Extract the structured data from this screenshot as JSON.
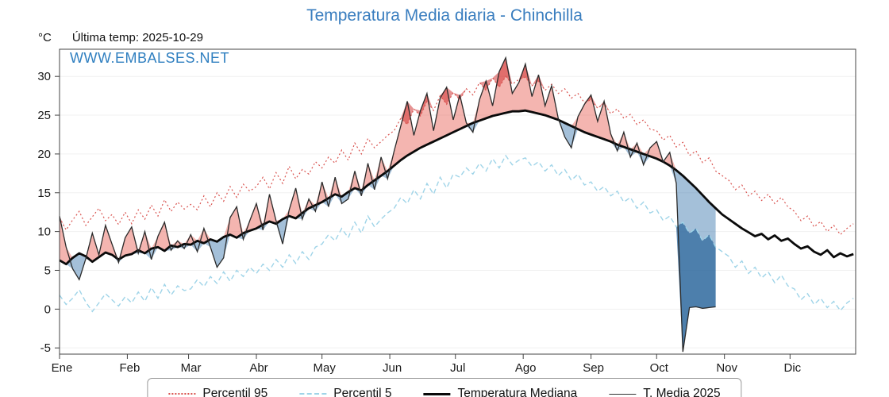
{
  "title": "Temperatura Media diaria - Chinchilla",
  "y_axis_unit": "°C",
  "last_temp_label": "Última temp: 2025-10-29",
  "watermark": "WWW.EMBALSES.NET",
  "colors": {
    "title_blue": "#3a7ebf",
    "watermark_blue": "#2f7fc0",
    "p95_line": "#d9534f",
    "p5_line": "#9fd4e8",
    "median_line": "#0a0a0a",
    "t2025_line": "#2a2a2a",
    "fill_red_light": "rgba(230,90,80,0.45)",
    "fill_red_dark": "rgba(205,40,40,0.50)",
    "fill_blue_light": "rgba(90,140,185,0.55)",
    "fill_blue_dark": "rgba(55,110,160,0.80)"
  },
  "legend": [
    {
      "label": "Percentil 95"
    },
    {
      "label": "Percentil 5"
    },
    {
      "label": "Temperatura Mediana"
    },
    {
      "label": "T. Media 2025"
    }
  ],
  "chart_data": {
    "type": "line",
    "title": "Temperatura Media diaria - Chinchilla",
    "ylabel": "°C",
    "ylim": [
      -5.8,
      33.5
    ],
    "y_ticks": [
      -5,
      0,
      5,
      10,
      15,
      20,
      25,
      30
    ],
    "month_ticks": {
      "days": [
        1,
        32,
        60,
        91,
        121,
        152,
        182,
        213,
        244,
        274,
        305,
        335
      ],
      "labels": [
        "Ene",
        "Feb",
        "Mar",
        "Abr",
        "May",
        "Jun",
        "Jul",
        "Ago",
        "Sep",
        "Oct",
        "Nov",
        "Dic"
      ]
    },
    "x_days": [
      1,
      4,
      7,
      10,
      13,
      16,
      19,
      22,
      25,
      28,
      31,
      34,
      37,
      40,
      43,
      46,
      49,
      52,
      55,
      58,
      61,
      64,
      67,
      70,
      73,
      76,
      79,
      82,
      85,
      88,
      91,
      94,
      97,
      100,
      103,
      106,
      109,
      112,
      115,
      118,
      121,
      124,
      127,
      130,
      133,
      136,
      139,
      142,
      145,
      148,
      151,
      154,
      157,
      160,
      163,
      166,
      169,
      172,
      175,
      178,
      181,
      184,
      187,
      190,
      193,
      196,
      199,
      202,
      205,
      208,
      211,
      214,
      217,
      220,
      223,
      226,
      229,
      232,
      235,
      238,
      241,
      244,
      247,
      250,
      253,
      256,
      259,
      262,
      265,
      268,
      271,
      274,
      277,
      280,
      283,
      286,
      289,
      292,
      295,
      298,
      301,
      304,
      307,
      310,
      313,
      316,
      319,
      322,
      325,
      328,
      331,
      334,
      337,
      340,
      343,
      346,
      349,
      352,
      355,
      358,
      361,
      364
    ],
    "series": [
      {
        "name": "Percentil 95",
        "values": [
          11.8,
          10.2,
          11.5,
          12.6,
          10.8,
          11.9,
          13.0,
          11.4,
          12.2,
          10.9,
          12.5,
          11.0,
          12.8,
          11.6,
          13.4,
          12.0,
          14.1,
          12.6,
          13.8,
          12.9,
          13.5,
          12.8,
          14.6,
          13.2,
          15.0,
          13.9,
          15.8,
          14.4,
          16.1,
          15.2,
          15.8,
          17.0,
          15.5,
          17.6,
          16.2,
          18.4,
          16.8,
          18.0,
          17.4,
          19.0,
          18.2,
          19.6,
          18.8,
          20.5,
          19.2,
          21.4,
          20.0,
          22.0,
          20.8,
          21.6,
          22.4,
          23.0,
          24.6,
          23.8,
          25.8,
          24.9,
          26.8,
          25.6,
          27.5,
          26.4,
          27.9,
          27.0,
          28.4,
          27.6,
          29.2,
          28.2,
          29.8,
          28.6,
          30.0,
          29.0,
          29.6,
          29.9,
          28.8,
          29.4,
          28.2,
          29.0,
          27.8,
          28.4,
          27.2,
          27.8,
          26.6,
          27.0,
          25.9,
          26.5,
          25.2,
          25.8,
          24.6,
          25.1,
          23.8,
          24.4,
          23.2,
          23.0,
          21.8,
          22.4,
          20.9,
          21.5,
          19.8,
          20.4,
          18.9,
          19.5,
          17.8,
          17.2,
          16.6,
          15.4,
          16.0,
          14.6,
          15.2,
          14.0,
          14.8,
          13.6,
          14.4,
          13.2,
          12.6,
          11.4,
          12.0,
          10.6,
          11.3,
          10.0,
          10.8,
          9.6,
          10.4,
          11.0
        ]
      },
      {
        "name": "Percentil 5",
        "values": [
          1.8,
          0.6,
          1.4,
          2.5,
          0.9,
          -0.3,
          0.8,
          2.0,
          1.2,
          0.4,
          1.6,
          0.8,
          2.2,
          1.0,
          2.8,
          1.4,
          3.2,
          1.8,
          3.0,
          2.4,
          2.6,
          3.8,
          2.9,
          4.2,
          3.3,
          4.8,
          3.6,
          5.0,
          4.2,
          5.4,
          4.6,
          5.8,
          5.0,
          6.4,
          5.4,
          7.0,
          5.9,
          7.4,
          6.4,
          8.0,
          8.4,
          9.6,
          8.8,
          10.4,
          9.2,
          11.2,
          9.8,
          12.0,
          10.6,
          11.6,
          12.4,
          13.0,
          14.4,
          13.6,
          15.4,
          14.2,
          16.2,
          14.8,
          17.0,
          15.6,
          17.4,
          17.0,
          18.2,
          17.4,
          18.8,
          17.8,
          19.4,
          18.2,
          19.8,
          18.6,
          19.2,
          19.5,
          18.4,
          19.0,
          17.8,
          18.6,
          17.2,
          18.0,
          16.6,
          17.4,
          16.0,
          16.4,
          15.2,
          15.8,
          14.6,
          15.2,
          13.8,
          14.4,
          13.0,
          13.8,
          12.4,
          12.8,
          11.4,
          12.0,
          10.6,
          11.2,
          9.8,
          10.4,
          8.8,
          9.6,
          8.0,
          7.4,
          6.8,
          5.4,
          6.2,
          4.6,
          5.4,
          4.0,
          4.8,
          3.4,
          4.4,
          3.0,
          2.6,
          1.2,
          2.0,
          0.6,
          1.4,
          0.2,
          1.0,
          -0.2,
          0.8,
          1.4
        ]
      },
      {
        "name": "Temperatura Mediana",
        "values": [
          6.3,
          5.8,
          6.6,
          7.2,
          6.8,
          6.1,
          6.7,
          7.3,
          7.0,
          6.4,
          6.9,
          7.1,
          7.6,
          7.2,
          7.8,
          8.0,
          7.5,
          8.2,
          8.0,
          8.4,
          8.3,
          8.8,
          8.5,
          9.0,
          8.7,
          9.3,
          9.6,
          9.2,
          9.8,
          10.1,
          10.4,
          10.9,
          11.3,
          11.0,
          11.6,
          12.0,
          11.7,
          12.4,
          13.0,
          13.4,
          13.8,
          14.3,
          14.8,
          14.5,
          15.1,
          15.6,
          15.3,
          16.0,
          16.6,
          17.2,
          17.8,
          18.5,
          19.2,
          19.8,
          20.3,
          20.8,
          21.2,
          21.6,
          22.0,
          22.4,
          22.8,
          23.2,
          23.6,
          24.0,
          24.3,
          24.6,
          24.9,
          25.1,
          25.3,
          25.5,
          25.5,
          25.6,
          25.4,
          25.2,
          25.0,
          24.7,
          24.4,
          24.0,
          23.6,
          23.2,
          22.8,
          22.5,
          22.2,
          21.9,
          21.6,
          21.2,
          20.9,
          20.6,
          20.3,
          20.0,
          19.7,
          19.4,
          19.0,
          18.5,
          17.9,
          17.2,
          16.4,
          15.6,
          14.7,
          13.8,
          13.0,
          12.2,
          11.6,
          11.0,
          10.4,
          9.9,
          9.4,
          9.7,
          9.0,
          9.5,
          8.8,
          9.1,
          8.4,
          7.8,
          8.1,
          7.4,
          7.0,
          7.6,
          6.7,
          7.2,
          6.8,
          7.1
        ]
      },
      {
        "name": "T. Media 2025",
        "values": [
          12.0,
          8.0,
          5.2,
          3.8,
          6.5,
          9.8,
          7.0,
          10.8,
          8.4,
          6.0,
          9.2,
          10.6,
          7.2,
          10.0,
          6.4,
          9.4,
          11.2,
          7.6,
          8.8,
          7.8,
          9.6,
          7.4,
          10.4,
          8.0,
          5.4,
          6.6,
          11.8,
          13.2,
          9.0,
          11.4,
          13.6,
          10.2,
          14.8,
          11.4,
          8.4,
          12.8,
          15.6,
          11.6,
          14.2,
          12.6,
          16.4,
          13.2,
          17.0,
          13.6,
          14.2,
          17.8,
          14.6,
          18.8,
          15.4,
          19.6,
          16.8,
          20.4,
          23.6,
          26.8,
          22.4,
          25.6,
          27.8,
          23.0,
          27.2,
          28.6,
          24.4,
          27.6,
          24.0,
          22.8,
          27.0,
          29.4,
          26.2,
          30.6,
          32.4,
          27.8,
          29.2,
          31.6,
          27.4,
          30.2,
          26.2,
          28.8,
          24.6,
          22.2,
          20.8,
          24.8,
          26.4,
          27.6,
          24.2,
          26.8,
          22.6,
          20.4,
          22.8,
          19.6,
          21.4,
          18.6,
          20.8,
          21.6,
          19.0,
          20.2,
          16.2,
          -5.5,
          0.2,
          0.3,
          0.1,
          0.2,
          0.3,
          null,
          null,
          null,
          null,
          null,
          null,
          null,
          null,
          null,
          null,
          null,
          null,
          null,
          null,
          null,
          null,
          null,
          null,
          null,
          null,
          null
        ]
      }
    ]
  }
}
